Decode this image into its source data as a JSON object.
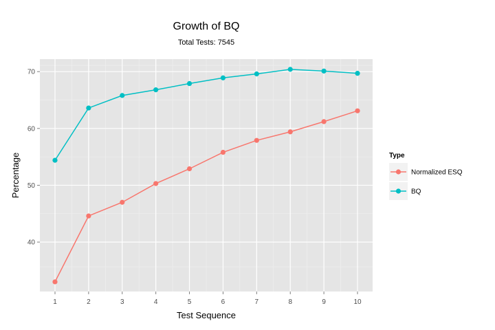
{
  "chart_data": {
    "type": "line",
    "title": "Growth of BQ",
    "subtitle": "Total Tests:  7545",
    "xlabel": "Test Sequence",
    "ylabel": "Percentage",
    "x": [
      1,
      2,
      3,
      4,
      5,
      6,
      7,
      8,
      9,
      10
    ],
    "xlim": [
      0.55,
      10.45
    ],
    "ylim": [
      31.3,
      72.2
    ],
    "yticks": [
      40,
      50,
      60,
      70
    ],
    "grid": true,
    "legend_position": "right",
    "legend_title": "Type",
    "series": [
      {
        "name": "Normalized ESQ",
        "color": "#F8766D",
        "values": [
          33.0,
          44.6,
          47.0,
          50.3,
          52.9,
          55.8,
          57.9,
          59.4,
          61.2,
          63.1
        ]
      },
      {
        "name": "BQ",
        "color": "#00BFC4",
        "values": [
          54.4,
          63.6,
          65.8,
          66.8,
          67.9,
          68.9,
          69.6,
          70.4,
          70.1,
          69.7
        ]
      }
    ]
  }
}
